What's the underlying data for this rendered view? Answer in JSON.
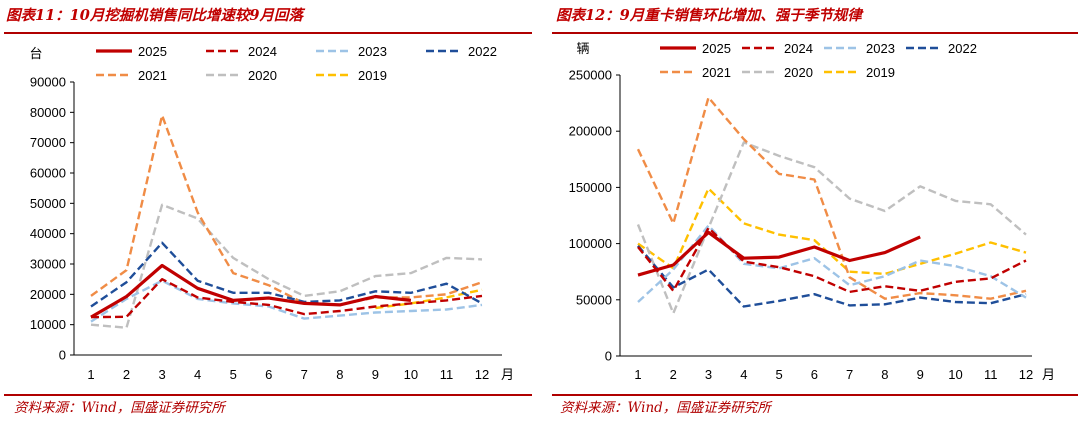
{
  "left": {
    "title": "图表11：10月挖掘机销售同比增速较9月回落",
    "source": "资料来源：Wind，国盛证券研究所"
  },
  "right": {
    "title": "图表12：9月重卡销售环比增加、强于季节规律",
    "source": "资料来源：Wind，国盛证券研究所"
  },
  "colors": {
    "2025": "#c00000",
    "2024": "#c00000",
    "2023": "#9dc3e6",
    "2022": "#1f4e99",
    "2021": "#f08c46",
    "2020": "#bfbfbf",
    "2019": "#ffc000",
    "title_red": "#c00000"
  },
  "chart_data": [
    {
      "type": "line",
      "yunit": "台",
      "xunit": "月",
      "x": [
        1,
        2,
        3,
        4,
        5,
        6,
        7,
        8,
        9,
        10,
        11,
        12
      ],
      "ylim": [
        0,
        90000
      ],
      "yticks": [
        0,
        10000,
        20000,
        30000,
        40000,
        50000,
        60000,
        70000,
        80000,
        90000
      ],
      "grid": false,
      "legend": "top",
      "series": [
        {
          "name": "2025",
          "dash": "solid",
          "values": [
            12500,
            19300,
            29500,
            22000,
            18000,
            18800,
            17000,
            16500,
            19300,
            18000,
            null,
            null
          ]
        },
        {
          "name": "2024",
          "dash": "dashed",
          "values": [
            12500,
            12600,
            25000,
            19000,
            17500,
            16500,
            13500,
            14500,
            16000,
            17000,
            18000,
            19500
          ]
        },
        {
          "name": "2023",
          "dash": "dashed",
          "values": [
            11000,
            18500,
            24500,
            18500,
            17000,
            16000,
            12000,
            13000,
            14000,
            14500,
            15000,
            16500
          ]
        },
        {
          "name": "2022",
          "dash": "dashed",
          "values": [
            16000,
            24000,
            37000,
            24500,
            20500,
            20500,
            17500,
            18000,
            21000,
            20500,
            23500,
            17000
          ]
        },
        {
          "name": "2021",
          "dash": "dashed",
          "values": [
            19500,
            28000,
            79000,
            47000,
            27000,
            23000,
            17000,
            16500,
            19000,
            19000,
            20000,
            24000
          ]
        },
        {
          "name": "2020",
          "dash": "dashed",
          "values": [
            10000,
            9000,
            49500,
            45000,
            32000,
            25000,
            19500,
            21000,
            26000,
            27000,
            32000,
            31500
          ]
        },
        {
          "name": "2019",
          "dash": "dashed",
          "values": [
            null,
            null,
            null,
            null,
            null,
            null,
            null,
            null,
            15500,
            17000,
            19000,
            21500
          ]
        }
      ]
    },
    {
      "type": "line",
      "yunit": "辆",
      "xunit": "月",
      "x": [
        1,
        2,
        3,
        4,
        5,
        6,
        7,
        8,
        9,
        10,
        11,
        12
      ],
      "ylim": [
        0,
        250000
      ],
      "yticks": [
        0,
        50000,
        100000,
        150000,
        200000,
        250000
      ],
      "grid": false,
      "legend": "top",
      "series": [
        {
          "name": "2025",
          "dash": "solid",
          "values": [
            72000,
            81000,
            110000,
            87000,
            88000,
            97000,
            85000,
            92000,
            106000,
            null,
            null,
            null
          ]
        },
        {
          "name": "2024",
          "dash": "dashed",
          "values": [
            97000,
            58000,
            114000,
            84000,
            79000,
            71000,
            57000,
            62000,
            58000,
            66000,
            69000,
            85000
          ]
        },
        {
          "name": "2023",
          "dash": "dashed",
          "values": [
            48000,
            77000,
            116000,
            82000,
            78000,
            87000,
            63000,
            71000,
            85000,
            80000,
            71000,
            52000
          ]
        },
        {
          "name": "2022",
          "dash": "dashed",
          "values": [
            98000,
            61000,
            77000,
            44000,
            49000,
            55000,
            45000,
            46000,
            52000,
            48000,
            47000,
            55000
          ]
        },
        {
          "name": "2021",
          "dash": "dashed",
          "values": [
            184000,
            118000,
            230000,
            193000,
            162000,
            157000,
            70000,
            51000,
            56000,
            54000,
            51000,
            58000
          ]
        },
        {
          "name": "2020",
          "dash": "dashed",
          "values": [
            117000,
            38000,
            114000,
            190000,
            178000,
            168000,
            140000,
            129000,
            151000,
            138000,
            135000,
            108000
          ]
        },
        {
          "name": "2019",
          "dash": "dashed",
          "values": [
            100000,
            78000,
            149000,
            118000,
            108000,
            103000,
            75000,
            73000,
            82000,
            91000,
            101000,
            92000
          ]
        }
      ]
    }
  ]
}
